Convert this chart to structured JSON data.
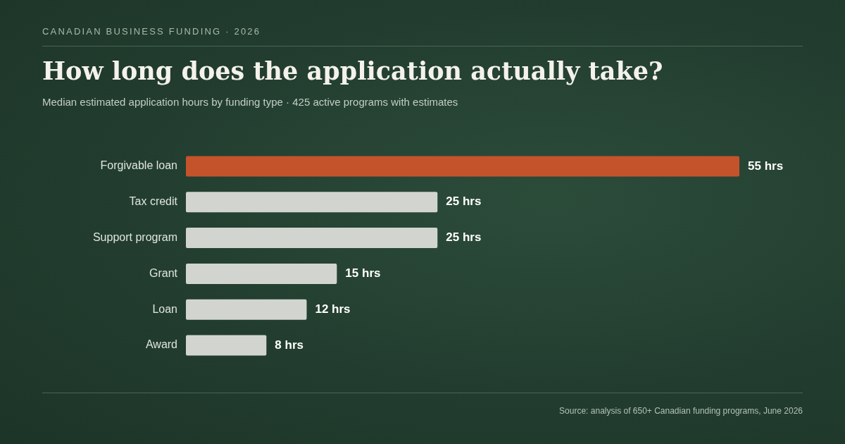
{
  "chart_data": {
    "type": "bar",
    "orientation": "horizontal",
    "title": "How long does the application actually take?",
    "subtitle": "Median estimated application hours by funding type · 425 active programs with estimates",
    "annotations": [
      "CANADIAN BUSINESS FUNDING · 2026",
      "Source: analysis of 650+ Canadian funding programs, June 2026"
    ],
    "categories": [
      "Forgivable loan",
      "Tax credit",
      "Support program",
      "Grant",
      "Loan",
      "Award"
    ],
    "values": [
      55,
      25,
      25,
      15,
      12,
      8
    ],
    "value_labels": [
      "55 hrs",
      "25 hrs",
      "25 hrs",
      "15 hrs",
      "12 hrs",
      "8 hrs"
    ],
    "colors": [
      "#c4532c",
      "#d2d5cf",
      "#d2d5cf",
      "#d2d5cf",
      "#d2d5cf",
      "#d2d5cf"
    ],
    "legend": false
  }
}
